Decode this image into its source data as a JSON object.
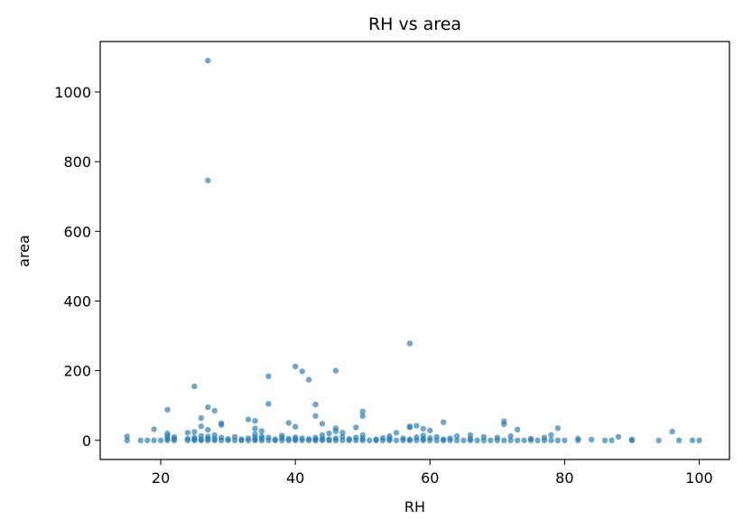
{
  "chart_data": {
    "type": "scatter",
    "title": "RH vs area",
    "xlabel": "RH",
    "ylabel": "area",
    "xlim": [
      11,
      104.5
    ],
    "ylim": [
      -55,
      1145
    ],
    "xticks": [
      20,
      40,
      60,
      80,
      100
    ],
    "yticks": [
      0,
      200,
      400,
      600,
      800,
      1000
    ],
    "grid": false,
    "marker_color": "#1f77b4",
    "series": [
      {
        "points": [
          [
            15,
            0
          ],
          [
            15,
            11
          ],
          [
            17,
            0
          ],
          [
            18,
            0
          ],
          [
            19,
            0
          ],
          [
            19,
            32
          ],
          [
            20,
            0
          ],
          [
            21,
            0
          ],
          [
            21,
            5
          ],
          [
            21,
            12
          ],
          [
            21,
            20
          ],
          [
            21,
            88
          ],
          [
            22,
            0
          ],
          [
            22,
            4
          ],
          [
            22,
            10
          ],
          [
            24,
            0
          ],
          [
            24,
            5
          ],
          [
            24,
            22
          ],
          [
            25,
            0
          ],
          [
            25,
            3
          ],
          [
            25,
            8
          ],
          [
            25,
            24
          ],
          [
            25,
            155
          ],
          [
            26,
            0
          ],
          [
            26,
            2
          ],
          [
            26,
            13
          ],
          [
            26,
            40
          ],
          [
            26,
            64
          ],
          [
            27,
            0
          ],
          [
            27,
            4
          ],
          [
            27,
            11
          ],
          [
            27,
            30
          ],
          [
            27,
            95
          ],
          [
            27,
            746
          ],
          [
            27,
            1090
          ],
          [
            28,
            0
          ],
          [
            28,
            5
          ],
          [
            28,
            15
          ],
          [
            28,
            85
          ],
          [
            29,
            0
          ],
          [
            29,
            8
          ],
          [
            29,
            44
          ],
          [
            29,
            49
          ],
          [
            30,
            0
          ],
          [
            30,
            4
          ],
          [
            31,
            0
          ],
          [
            31,
            10
          ],
          [
            32,
            0
          ],
          [
            32,
            3
          ],
          [
            33,
            0
          ],
          [
            33,
            6
          ],
          [
            33,
            60
          ],
          [
            34,
            0
          ],
          [
            34,
            2
          ],
          [
            34,
            9
          ],
          [
            34,
            18
          ],
          [
            34,
            34
          ],
          [
            34,
            56
          ],
          [
            35,
            0
          ],
          [
            35,
            5
          ],
          [
            35,
            12
          ],
          [
            35,
            27
          ],
          [
            36,
            0
          ],
          [
            36,
            8
          ],
          [
            36,
            105
          ],
          [
            36,
            184
          ],
          [
            37,
            0
          ],
          [
            37,
            3
          ],
          [
            38,
            0
          ],
          [
            38,
            7
          ],
          [
            38,
            14
          ],
          [
            39,
            0
          ],
          [
            39,
            5
          ],
          [
            39,
            50
          ],
          [
            40,
            0
          ],
          [
            40,
            3
          ],
          [
            40,
            9
          ],
          [
            40,
            39
          ],
          [
            40,
            212
          ],
          [
            41,
            0
          ],
          [
            41,
            6
          ],
          [
            41,
            198
          ],
          [
            42,
            0
          ],
          [
            42,
            4
          ],
          [
            42,
            174
          ],
          [
            43,
            0
          ],
          [
            43,
            2
          ],
          [
            43,
            8
          ],
          [
            43,
            70
          ],
          [
            43,
            103
          ],
          [
            44,
            0
          ],
          [
            44,
            5
          ],
          [
            44,
            15
          ],
          [
            44,
            48
          ],
          [
            45,
            0
          ],
          [
            45,
            3
          ],
          [
            45,
            20
          ],
          [
            46,
            0
          ],
          [
            46,
            6
          ],
          [
            46,
            26
          ],
          [
            46,
            35
          ],
          [
            46,
            200
          ],
          [
            47,
            0
          ],
          [
            47,
            10
          ],
          [
            47,
            22
          ],
          [
            48,
            0
          ],
          [
            48,
            4
          ],
          [
            49,
            0
          ],
          [
            49,
            8
          ],
          [
            49,
            37
          ],
          [
            50,
            0
          ],
          [
            50,
            5
          ],
          [
            50,
            15
          ],
          [
            50,
            70
          ],
          [
            50,
            83
          ],
          [
            51,
            0
          ],
          [
            52,
            0
          ],
          [
            52,
            3
          ],
          [
            53,
            0
          ],
          [
            53,
            7
          ],
          [
            54,
            0
          ],
          [
            54,
            4
          ],
          [
            54,
            12
          ],
          [
            55,
            0
          ],
          [
            55,
            22
          ],
          [
            56,
            0
          ],
          [
            56,
            6
          ],
          [
            57,
            0
          ],
          [
            57,
            3
          ],
          [
            57,
            37
          ],
          [
            57,
            40
          ],
          [
            57,
            278
          ],
          [
            58,
            0
          ],
          [
            58,
            9
          ],
          [
            58,
            42
          ],
          [
            59,
            0
          ],
          [
            59,
            4
          ],
          [
            59,
            14
          ],
          [
            59,
            33
          ],
          [
            60,
            0
          ],
          [
            60,
            7
          ],
          [
            60,
            28
          ],
          [
            61,
            0
          ],
          [
            61,
            10
          ],
          [
            62,
            0
          ],
          [
            62,
            3
          ],
          [
            62,
            52
          ],
          [
            63,
            0
          ],
          [
            63,
            6
          ],
          [
            64,
            0
          ],
          [
            64,
            12
          ],
          [
            65,
            0
          ],
          [
            66,
            0
          ],
          [
            66,
            4
          ],
          [
            66,
            15
          ],
          [
            67,
            0
          ],
          [
            68,
            0
          ],
          [
            68,
            10
          ],
          [
            69,
            0
          ],
          [
            70,
            0
          ],
          [
            70,
            8
          ],
          [
            71,
            0
          ],
          [
            71,
            46
          ],
          [
            71,
            55
          ],
          [
            72,
            0
          ],
          [
            72,
            12
          ],
          [
            73,
            0
          ],
          [
            73,
            31
          ],
          [
            74,
            0
          ],
          [
            75,
            0
          ],
          [
            75,
            5
          ],
          [
            76,
            0
          ],
          [
            77,
            0
          ],
          [
            77,
            8
          ],
          [
            78,
            0
          ],
          [
            78,
            15
          ],
          [
            79,
            0
          ],
          [
            79,
            35
          ],
          [
            80,
            0
          ],
          [
            82,
            0
          ],
          [
            82,
            5
          ],
          [
            84,
            2
          ],
          [
            86,
            0
          ],
          [
            87,
            0
          ],
          [
            88,
            10
          ],
          [
            90,
            0
          ],
          [
            90,
            2
          ],
          [
            94,
            0
          ],
          [
            96,
            25
          ],
          [
            97,
            0
          ],
          [
            99,
            0
          ],
          [
            100,
            0
          ]
        ]
      }
    ]
  }
}
